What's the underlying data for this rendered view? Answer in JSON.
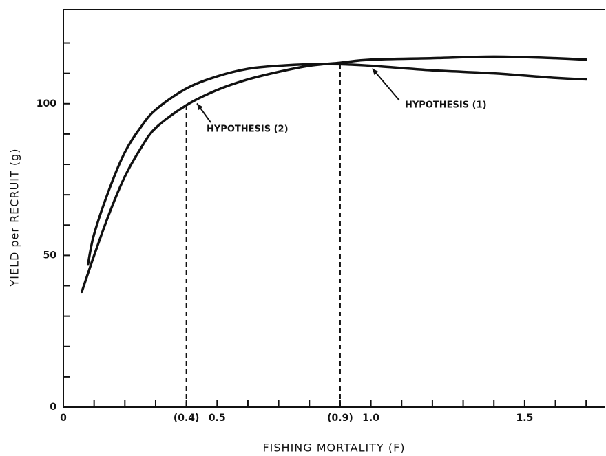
{
  "chart_data": {
    "type": "line",
    "x_label": "FISHING MORTALITY (F)",
    "y_label": "YIELD per RECRUIT (g)",
    "xlim": [
      0,
      1.76
    ],
    "ylim": [
      0,
      131
    ],
    "xticks": [
      0,
      {
        "value": 0.4,
        "label": "(0.4)"
      },
      0.5,
      {
        "value": 0.9,
        "label": "(0.9)"
      },
      {
        "value": 1.0,
        "label": "1.0"
      },
      1.5
    ],
    "xminor": [
      0.1,
      0.2,
      0.3,
      0.6,
      0.7,
      0.8,
      1.1,
      1.2,
      1.3,
      1.4,
      1.6,
      1.7
    ],
    "yticks": [
      0,
      50,
      100
    ],
    "yminor": [
      10,
      20,
      30,
      40,
      60,
      70,
      80,
      90,
      110,
      120
    ],
    "series": [
      {
        "name": "HYPOTHESIS (1)",
        "color": "#111111",
        "x": [
          0.08,
          0.1,
          0.15,
          0.2,
          0.25,
          0.3,
          0.4,
          0.5,
          0.6,
          0.7,
          0.8,
          0.9,
          1.0,
          1.2,
          1.4,
          1.6,
          1.7
        ],
        "values": [
          47,
          57,
          72,
          84,
          92,
          98,
          105,
          109,
          111.5,
          112.5,
          113,
          113,
          112.5,
          111,
          110,
          108.5,
          108
        ]
      },
      {
        "name": "HYPOTHESIS (2)",
        "color": "#111111",
        "x": [
          0.06,
          0.1,
          0.15,
          0.2,
          0.25,
          0.3,
          0.4,
          0.5,
          0.6,
          0.7,
          0.8,
          0.9,
          1.0,
          1.2,
          1.4,
          1.6,
          1.7
        ],
        "values": [
          38,
          50,
          64,
          76,
          85,
          92,
          99.5,
          104.5,
          108,
          110.5,
          112.5,
          113.5,
          114.5,
          115,
          115.5,
          115,
          114.5
        ]
      }
    ],
    "reference_lines": [
      {
        "x": 0.4,
        "y": 99.5
      },
      {
        "x": 0.9,
        "y": 114
      }
    ]
  }
}
